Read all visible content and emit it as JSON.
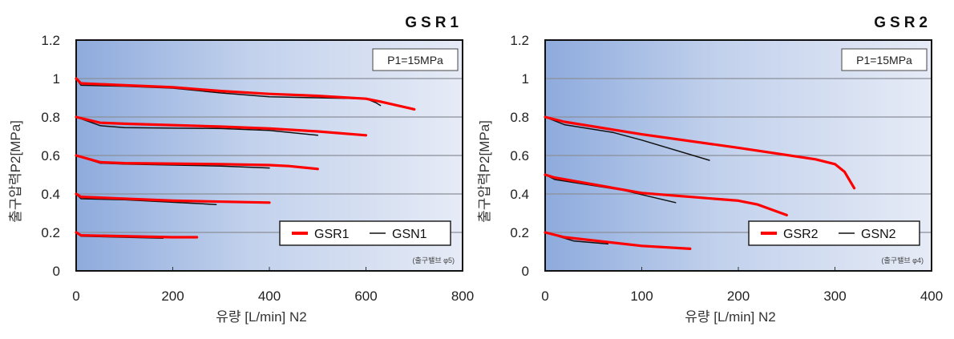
{
  "chart_data": [
    {
      "type": "line",
      "title": "GSR1",
      "condition": "P1=15MPa",
      "note": "(출구밸브 φ5)",
      "xlabel": "유량 [L/min] N2",
      "ylabel": "출구압력P2[MPa]",
      "xlim": [
        0,
        800
      ],
      "ylim": [
        0,
        1.2
      ],
      "xticks": [
        0,
        200,
        400,
        600,
        800
      ],
      "yticks": [
        "0",
        "0.2",
        "0.4",
        "0.6",
        "0.8",
        "1",
        "1.2"
      ],
      "grid": true,
      "legend": "bottom-right",
      "series": [
        {
          "name": "GSR1",
          "color": "#ff0000",
          "curves": [
            [
              [
                0,
                1.0
              ],
              [
                10,
                0.975
              ],
              [
                100,
                0.965
              ],
              [
                200,
                0.955
              ],
              [
                300,
                0.935
              ],
              [
                400,
                0.92
              ],
              [
                500,
                0.91
              ],
              [
                600,
                0.895
              ],
              [
                630,
                0.88
              ],
              [
                700,
                0.84
              ]
            ],
            [
              [
                0,
                0.8
              ],
              [
                50,
                0.77
              ],
              [
                100,
                0.765
              ],
              [
                300,
                0.75
              ],
              [
                400,
                0.74
              ],
              [
                500,
                0.725
              ],
              [
                600,
                0.705
              ]
            ],
            [
              [
                0,
                0.6
              ],
              [
                50,
                0.565
              ],
              [
                100,
                0.56
              ],
              [
                300,
                0.555
              ],
              [
                400,
                0.55
              ],
              [
                440,
                0.545
              ],
              [
                500,
                0.53
              ]
            ],
            [
              [
                0,
                0.4
              ],
              [
                10,
                0.385
              ],
              [
                200,
                0.365
              ],
              [
                400,
                0.355
              ]
            ],
            [
              [
                0,
                0.2
              ],
              [
                10,
                0.185
              ],
              [
                200,
                0.175
              ],
              [
                250,
                0.175
              ]
            ]
          ]
        },
        {
          "name": "GSN1",
          "color": "#111111",
          "curves": [
            [
              [
                0,
                1.0
              ],
              [
                10,
                0.965
              ],
              [
                100,
                0.96
              ],
              [
                200,
                0.95
              ],
              [
                300,
                0.925
              ],
              [
                400,
                0.905
              ],
              [
                500,
                0.9
              ],
              [
                600,
                0.895
              ],
              [
                620,
                0.875
              ],
              [
                630,
                0.86
              ]
            ],
            [
              [
                0,
                0.8
              ],
              [
                50,
                0.755
              ],
              [
                100,
                0.745
              ],
              [
                300,
                0.74
              ],
              [
                400,
                0.73
              ],
              [
                500,
                0.705
              ]
            ],
            [
              [
                0,
                0.6
              ],
              [
                50,
                0.56
              ],
              [
                100,
                0.555
              ],
              [
                300,
                0.545
              ],
              [
                400,
                0.535
              ]
            ],
            [
              [
                0,
                0.4
              ],
              [
                10,
                0.375
              ],
              [
                100,
                0.37
              ],
              [
                290,
                0.345
              ]
            ],
            [
              [
                0,
                0.2
              ],
              [
                10,
                0.18
              ],
              [
                180,
                0.17
              ]
            ]
          ]
        }
      ]
    },
    {
      "type": "line",
      "title": "GSR2",
      "condition": "P1=15MPa",
      "note": "(출구밸브 φ4)",
      "xlabel": "유량 [L/min] N2",
      "ylabel": "출구압력P2[MPa]",
      "xlim": [
        0,
        400
      ],
      "ylim": [
        0,
        1.2
      ],
      "xticks": [
        0,
        100,
        200,
        300,
        400
      ],
      "yticks": [
        "0",
        "0.2",
        "0.4",
        "0.6",
        "0.8",
        "1",
        "1.2"
      ],
      "grid": true,
      "legend": "bottom-right",
      "series": [
        {
          "name": "GSR2",
          "color": "#ff0000",
          "curves": [
            [
              [
                0,
                0.8
              ],
              [
                20,
                0.775
              ],
              [
                100,
                0.71
              ],
              [
                200,
                0.64
              ],
              [
                280,
                0.58
              ],
              [
                300,
                0.555
              ],
              [
                310,
                0.515
              ],
              [
                320,
                0.43
              ]
            ],
            [
              [
                0,
                0.5
              ],
              [
                10,
                0.485
              ],
              [
                100,
                0.405
              ],
              [
                200,
                0.365
              ],
              [
                220,
                0.345
              ],
              [
                250,
                0.29
              ]
            ],
            [
              [
                0,
                0.2
              ],
              [
                20,
                0.175
              ],
              [
                100,
                0.13
              ],
              [
                150,
                0.115
              ]
            ]
          ]
        },
        {
          "name": "GSN2",
          "color": "#111111",
          "curves": [
            [
              [
                0,
                0.8
              ],
              [
                20,
                0.76
              ],
              [
                70,
                0.72
              ],
              [
                100,
                0.68
              ],
              [
                170,
                0.575
              ]
            ],
            [
              [
                0,
                0.5
              ],
              [
                10,
                0.475
              ],
              [
                80,
                0.42
              ],
              [
                135,
                0.355
              ]
            ],
            [
              [
                0,
                0.2
              ],
              [
                30,
                0.155
              ],
              [
                65,
                0.14
              ]
            ]
          ]
        }
      ]
    }
  ]
}
